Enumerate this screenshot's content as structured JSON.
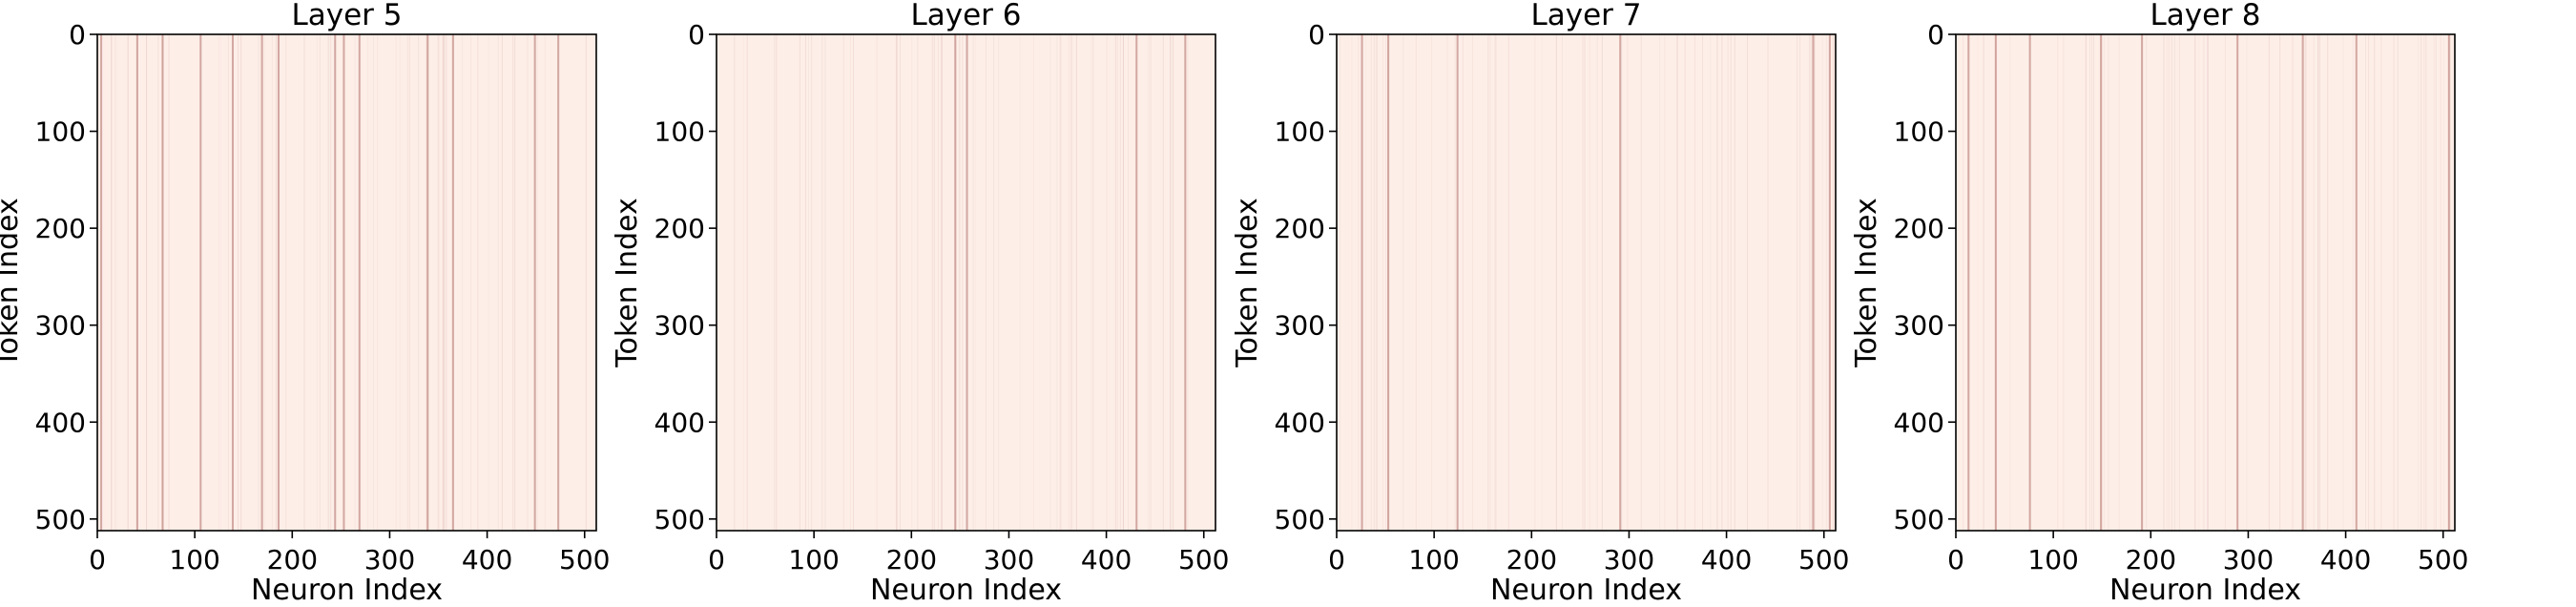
{
  "chart_data": [
    {
      "type": "heatmap",
      "title": "Layer 5",
      "xlabel": "Neuron Index",
      "ylabel": "Token Index",
      "x_range": [
        0,
        512
      ],
      "y_range": [
        0,
        512
      ],
      "y_inverted": true,
      "xticks": [
        0,
        100,
        200,
        300,
        400,
        500
      ],
      "yticks": [
        0,
        100,
        200,
        300,
        400,
        500
      ],
      "colormap": "Reds",
      "colorbar": false,
      "background_color": "#fdeee8",
      "highlight_color": "#b07068",
      "highlight_columns": [
        3,
        40,
        66,
        105,
        138,
        168,
        185,
        243,
        252,
        268,
        338,
        364,
        448,
        472
      ]
    },
    {
      "type": "heatmap",
      "title": "Layer 6",
      "xlabel": "Neuron Index",
      "ylabel": "Token Index",
      "x_range": [
        0,
        512
      ],
      "y_range": [
        0,
        512
      ],
      "y_inverted": true,
      "xticks": [
        0,
        100,
        200,
        300,
        400,
        500
      ],
      "yticks": [
        0,
        100,
        200,
        300,
        400,
        500
      ],
      "colormap": "Reds",
      "colorbar": false,
      "background_color": "#fdeee8",
      "highlight_color": "#b07068",
      "highlight_columns": [
        244,
        256,
        430,
        480
      ]
    },
    {
      "type": "heatmap",
      "title": "Layer 7",
      "xlabel": "Neuron Index",
      "ylabel": "Token Index",
      "x_range": [
        0,
        512
      ],
      "y_range": [
        0,
        512
      ],
      "y_inverted": true,
      "xticks": [
        0,
        100,
        200,
        300,
        400,
        500
      ],
      "yticks": [
        0,
        100,
        200,
        300,
        400,
        500
      ],
      "colormap": "Reds",
      "colorbar": false,
      "background_color": "#fdeee8",
      "highlight_color": "#b07068",
      "highlight_columns": [
        25,
        52,
        123,
        290,
        488,
        505
      ]
    },
    {
      "type": "heatmap",
      "title": "Layer 8",
      "xlabel": "Neuron Index",
      "ylabel": "Token Index",
      "x_range": [
        0,
        512
      ],
      "y_range": [
        0,
        512
      ],
      "y_inverted": true,
      "xticks": [
        0,
        100,
        200,
        300,
        400,
        500
      ],
      "yticks": [
        0,
        100,
        200,
        300,
        400,
        500
      ],
      "colormap": "Reds",
      "colorbar": false,
      "background_color": "#fdeee8",
      "highlight_color": "#b07068",
      "highlight_columns": [
        12,
        40,
        75,
        148,
        190,
        288,
        355,
        410,
        505
      ]
    }
  ]
}
